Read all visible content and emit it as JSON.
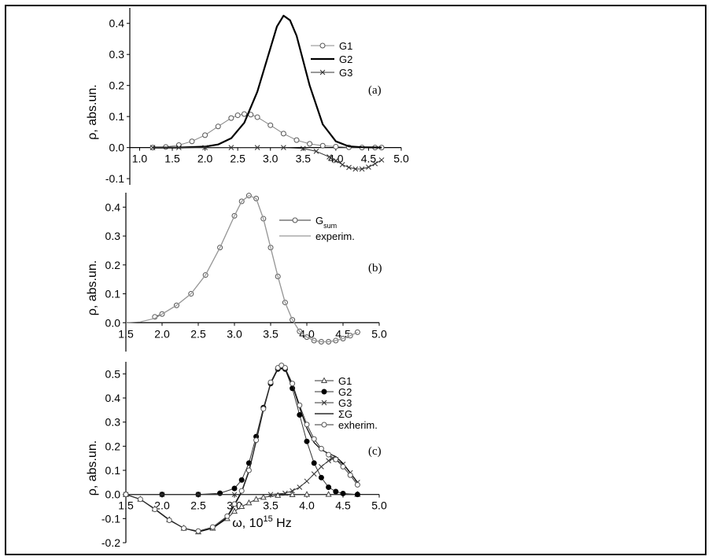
{
  "chart_data": [
    {
      "id": "a",
      "type": "line",
      "panel_label": "(a)",
      "ylabel": "ρ, abs.un.",
      "xlim": [
        0.85,
        5.0
      ],
      "ylim": [
        -0.12,
        0.45
      ],
      "xticks": [
        "1.0",
        "1.5",
        "2.0",
        "2.5",
        "3.0",
        "3.5",
        "4.0",
        "4.5",
        "5.0"
      ],
      "xtick_values": [
        1.0,
        1.5,
        2.0,
        2.5,
        3.0,
        3.5,
        4.0,
        4.5,
        5.0
      ],
      "yticks": [
        "-0.1",
        "0.0",
        "0.1",
        "0.2",
        "0.3",
        "0.4"
      ],
      "ytick_values": [
        -0.1,
        0.0,
        0.1,
        0.2,
        0.3,
        0.4
      ],
      "legend": [
        "G1",
        "G2",
        "G3"
      ],
      "series": [
        {
          "name": "G1",
          "marker": "circle",
          "x": [
            1.2,
            1.4,
            1.6,
            1.8,
            2.0,
            2.2,
            2.4,
            2.5,
            2.6,
            2.7,
            2.8,
            3.0,
            3.2,
            3.4,
            3.6,
            3.8,
            4.0,
            4.2,
            4.4,
            4.6,
            4.7
          ],
          "values": [
            0.0,
            0.002,
            0.008,
            0.02,
            0.04,
            0.068,
            0.095,
            0.104,
            0.108,
            0.106,
            0.098,
            0.072,
            0.045,
            0.024,
            0.012,
            0.006,
            0.003,
            0.001,
            0.0,
            0.0,
            0.0
          ]
        },
        {
          "name": "G2",
          "marker": "none",
          "x": [
            1.2,
            1.6,
            2.0,
            2.2,
            2.4,
            2.6,
            2.8,
            3.0,
            3.1,
            3.2,
            3.3,
            3.4,
            3.6,
            3.8,
            4.0,
            4.2,
            4.4,
            4.7
          ],
          "values": [
            0.0,
            0.0,
            0.003,
            0.01,
            0.03,
            0.08,
            0.18,
            0.32,
            0.39,
            0.425,
            0.41,
            0.36,
            0.2,
            0.075,
            0.02,
            0.004,
            0.001,
            0.0
          ]
        },
        {
          "name": "G3",
          "marker": "x",
          "x": [
            1.2,
            1.6,
            2.0,
            2.4,
            2.8,
            3.2,
            3.5,
            3.7,
            3.9,
            4.0,
            4.1,
            4.2,
            4.3,
            4.4,
            4.5,
            4.6,
            4.7
          ],
          "values": [
            0.0,
            0.0,
            0.0,
            0.0,
            0.0,
            0.0,
            -0.003,
            -0.012,
            -0.03,
            -0.042,
            -0.055,
            -0.064,
            -0.069,
            -0.069,
            -0.063,
            -0.052,
            -0.04
          ]
        }
      ]
    },
    {
      "id": "b",
      "type": "line",
      "panel_label": "(b)",
      "ylabel": "ρ, abs.un.",
      "xlim": [
        1.5,
        5.0
      ],
      "ylim": [
        -0.1,
        0.45
      ],
      "xticks": [
        "1.5",
        "2.0",
        "2.5",
        "3.0",
        "3.5",
        "4.0",
        "4.5",
        "5.0"
      ],
      "xtick_values": [
        1.5,
        2.0,
        2.5,
        3.0,
        3.5,
        4.0,
        4.5,
        5.0
      ],
      "yticks": [
        "0.0",
        "0.1",
        "0.2",
        "0.3",
        "0.4"
      ],
      "ytick_values": [
        0.0,
        0.1,
        0.2,
        0.3,
        0.4
      ],
      "legend": [
        "G",
        "experim."
      ],
      "legend_subscript": "sum",
      "series": [
        {
          "name": "G_sum",
          "marker": "circle",
          "x": [
            1.9,
            2.0,
            2.2,
            2.4,
            2.6,
            2.8,
            3.0,
            3.1,
            3.2,
            3.3,
            3.4,
            3.5,
            3.6,
            3.7,
            3.8,
            3.9,
            4.0,
            4.1,
            4.2,
            4.3,
            4.4,
            4.5,
            4.6,
            4.7
          ],
          "values": [
            0.02,
            0.03,
            0.06,
            0.1,
            0.165,
            0.26,
            0.37,
            0.42,
            0.44,
            0.43,
            0.36,
            0.26,
            0.16,
            0.07,
            0.01,
            -0.03,
            -0.05,
            -0.062,
            -0.066,
            -0.066,
            -0.062,
            -0.055,
            -0.045,
            -0.033
          ]
        },
        {
          "name": "experim.",
          "marker": "none",
          "x": [
            1.5,
            1.7,
            1.9,
            2.0,
            2.2,
            2.4,
            2.6,
            2.8,
            3.0,
            3.1,
            3.2,
            3.3,
            3.4,
            3.5,
            3.6,
            3.7,
            3.8,
            3.9,
            4.0,
            4.1,
            4.2,
            4.3,
            4.4,
            4.5,
            4.6,
            4.7
          ],
          "values": [
            0.0,
            0.003,
            0.015,
            0.03,
            0.06,
            0.1,
            0.165,
            0.26,
            0.37,
            0.42,
            0.44,
            0.43,
            0.36,
            0.26,
            0.16,
            0.07,
            0.01,
            -0.03,
            -0.05,
            -0.062,
            -0.066,
            -0.066,
            -0.062,
            -0.055,
            -0.045,
            -0.033
          ]
        }
      ]
    },
    {
      "id": "c",
      "type": "line",
      "panel_label": "(c)",
      "ylabel": "ρ, abs.un.",
      "xlabel": "ω, 10",
      "xlabel_sup": "15",
      "xlabel_tail": " Hz",
      "xlim": [
        1.5,
        5.0
      ],
      "ylim": [
        -0.2,
        0.55
      ],
      "xticks": [
        "1.5",
        "2.0",
        "2.5",
        "3.0",
        "3.5",
        "4.0",
        "4.5",
        "5.0"
      ],
      "xtick_values": [
        1.5,
        2.0,
        2.5,
        3.0,
        3.5,
        4.0,
        4.5,
        5.0
      ],
      "yticks": [
        "-0.2",
        "-0.1",
        "0.0",
        "0.1",
        "0.2",
        "0.3",
        "0.4",
        "0.5"
      ],
      "ytick_values": [
        -0.2,
        -0.1,
        0.0,
        0.1,
        0.2,
        0.3,
        0.4,
        0.5
      ],
      "legend": [
        "G1",
        "G2",
        "G3",
        "ΣG",
        "exherim."
      ],
      "series": [
        {
          "name": "G1",
          "marker": "triangle",
          "x": [
            1.5,
            1.7,
            1.9,
            2.1,
            2.3,
            2.5,
            2.7,
            2.9,
            3.0,
            3.1,
            3.2,
            3.3,
            3.4,
            3.6,
            3.8,
            4.0,
            4.3,
            4.7
          ],
          "values": [
            0.0,
            -0.02,
            -0.06,
            -0.105,
            -0.14,
            -0.155,
            -0.14,
            -0.1,
            -0.07,
            -0.05,
            -0.035,
            -0.02,
            -0.012,
            -0.004,
            -0.001,
            0.0,
            0.0,
            0.0
          ]
        },
        {
          "name": "G2",
          "marker": "dot",
          "x": [
            1.5,
            2.0,
            2.5,
            2.8,
            3.0,
            3.1,
            3.2,
            3.3,
            3.4,
            3.5,
            3.6,
            3.65,
            3.7,
            3.8,
            3.9,
            4.0,
            4.1,
            4.2,
            4.3,
            4.4,
            4.5,
            4.7
          ],
          "values": [
            0.0,
            0.0,
            0.0,
            0.005,
            0.025,
            0.06,
            0.13,
            0.24,
            0.36,
            0.46,
            0.52,
            0.53,
            0.52,
            0.44,
            0.33,
            0.22,
            0.13,
            0.07,
            0.03,
            0.012,
            0.004,
            0.0
          ]
        },
        {
          "name": "G3",
          "marker": "x",
          "x": [
            1.5,
            2.0,
            2.5,
            3.0,
            3.5,
            3.7,
            3.8,
            3.9,
            4.0,
            4.1,
            4.2,
            4.3,
            4.35,
            4.4,
            4.5,
            4.6,
            4.7
          ],
          "values": [
            0.0,
            0.0,
            0.0,
            0.0,
            0.0,
            0.005,
            0.015,
            0.03,
            0.055,
            0.085,
            0.115,
            0.14,
            0.148,
            0.145,
            0.125,
            0.09,
            0.05
          ]
        },
        {
          "name": "ΣG",
          "marker": "none",
          "x": [
            1.5,
            1.7,
            1.9,
            2.1,
            2.3,
            2.5,
            2.7,
            2.9,
            3.0,
            3.1,
            3.2,
            3.3,
            3.4,
            3.5,
            3.6,
            3.65,
            3.7,
            3.8,
            3.9,
            4.0,
            4.1,
            4.2,
            4.3,
            4.4,
            4.5,
            4.6,
            4.7
          ],
          "values": [
            0.0,
            -0.02,
            -0.06,
            -0.105,
            -0.14,
            -0.155,
            -0.14,
            -0.095,
            -0.045,
            0.01,
            0.095,
            0.22,
            0.35,
            0.46,
            0.52,
            0.53,
            0.52,
            0.455,
            0.36,
            0.275,
            0.215,
            0.185,
            0.17,
            0.157,
            0.129,
            0.09,
            0.05
          ]
        },
        {
          "name": "exherim.",
          "marker": "circle",
          "x": [
            1.5,
            1.7,
            1.9,
            2.1,
            2.3,
            2.5,
            2.7,
            2.9,
            3.0,
            3.1,
            3.2,
            3.3,
            3.4,
            3.5,
            3.6,
            3.65,
            3.7,
            3.8,
            3.9,
            4.0,
            4.1,
            4.2,
            4.3,
            4.4,
            4.5,
            4.6,
            4.7
          ],
          "values": [
            0.0,
            -0.02,
            -0.062,
            -0.107,
            -0.14,
            -0.152,
            -0.135,
            -0.09,
            -0.04,
            0.015,
            0.1,
            0.225,
            0.355,
            0.465,
            0.525,
            0.535,
            0.525,
            0.46,
            0.37,
            0.29,
            0.23,
            0.19,
            0.165,
            0.145,
            0.115,
            0.08,
            0.04
          ]
        }
      ]
    }
  ]
}
